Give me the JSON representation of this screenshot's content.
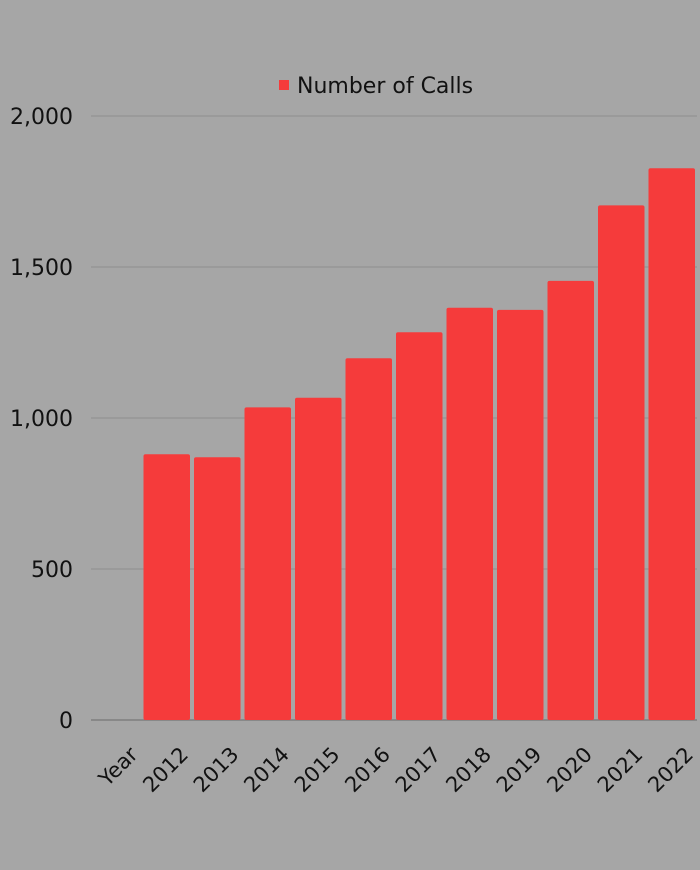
{
  "chart_data": {
    "type": "bar",
    "categories": [
      "Year",
      "2012",
      "2013",
      "2014",
      "2015",
      "2016",
      "2017",
      "2018",
      "2019",
      "2020",
      "2021",
      "2022"
    ],
    "series": [
      {
        "name": "Number of Calls",
        "values": [
          0,
          880,
          870,
          1035,
          1067,
          1198,
          1284,
          1365,
          1358,
          1454,
          1704,
          1827
        ],
        "color": "#f53b3b"
      }
    ],
    "ylim": [
      0,
      2000
    ],
    "yticks": [
      0,
      500,
      1000,
      1500,
      2000
    ],
    "ytick_labels": [
      "0",
      "500",
      "1,000",
      "1,500",
      "2,000"
    ],
    "grid": true,
    "legend_position": "top-center",
    "background_color": "#a6a6a6"
  }
}
